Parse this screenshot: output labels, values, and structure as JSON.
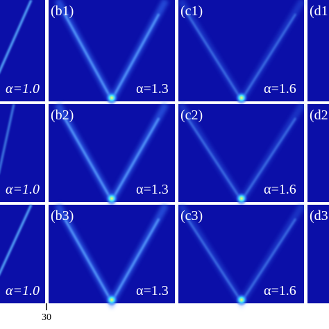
{
  "figure": {
    "rows": [
      {
        "a_alpha": "α=1.0",
        "b_label": "(b1)",
        "b_alpha": "α=1.3",
        "c_label": "(c1)",
        "c_alpha": "α=1.6",
        "d_label": "(d1"
      },
      {
        "a_alpha": "α=1.0",
        "b_label": "(b2)",
        "b_alpha": "α=1.3",
        "c_label": "(c2)",
        "c_alpha": "α=1.6",
        "d_label": "(d2"
      },
      {
        "a_alpha": "α=1.0",
        "b_label": "(b3)",
        "b_alpha": "α=1.3",
        "c_label": "(c3)",
        "c_alpha": "α=1.6",
        "d_label": "(d3"
      }
    ],
    "axis_tick": "30"
  }
}
